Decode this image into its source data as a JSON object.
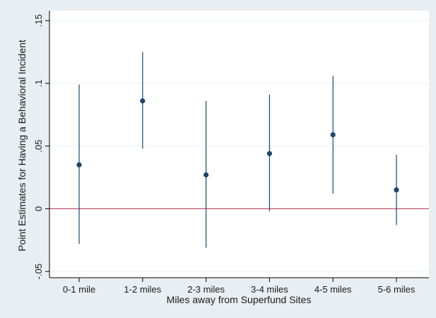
{
  "chart_data": {
    "type": "scatter",
    "title": "",
    "xlabel": "Miles away from Superfund Sites",
    "ylabel": "Point Estimates for Having a Behavioral Incident",
    "categories": [
      "0-1 mile",
      "1-2 miles",
      "2-3 miles",
      "3-4 miles",
      "4-5 miles",
      "5-6 miles"
    ],
    "series": [
      {
        "values": [
          0.035,
          0.086,
          0.027,
          0.044,
          0.059,
          0.015
        ],
        "ci_low": [
          -0.028,
          0.048,
          -0.031,
          -0.002,
          0.012,
          -0.013
        ],
        "ci_high": [
          0.099,
          0.125,
          0.086,
          0.091,
          0.106,
          0.043
        ]
      }
    ],
    "yticks": [
      -0.05,
      0,
      0.05,
      0.1,
      0.15
    ],
    "ytick_labels": [
      "-.05",
      "0",
      ".05",
      ".1",
      ".15"
    ],
    "ylim": [
      -0.055,
      0.158
    ],
    "reference_line": {
      "y": 0,
      "color": "#c0506e"
    },
    "grid": true,
    "colors": {
      "background": "#e8eef2",
      "plot_area": "#ffffff",
      "marker": "#1a476f",
      "gridline": "#eaf2f3"
    }
  }
}
